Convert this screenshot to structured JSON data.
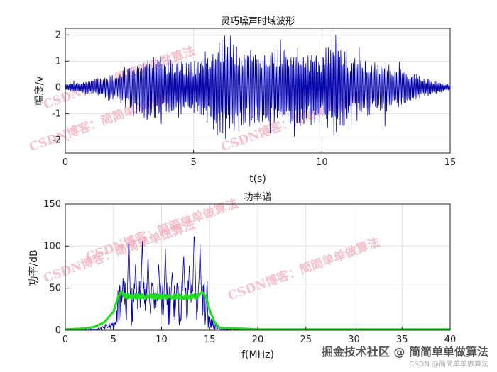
{
  "chart_data": [
    {
      "type": "line",
      "title": "灵巧噪声时域波形",
      "xlabel": "t(s)",
      "ylabel": "幅度/v",
      "xlim": [
        0,
        15
      ],
      "ylim": [
        -2.5,
        2.25
      ],
      "xticks": [
        0,
        5,
        10,
        15
      ],
      "yticks": [
        -2,
        -1,
        0,
        1,
        2
      ],
      "grid": true,
      "series": [
        {
          "color": "#0000aa",
          "description": "dense noise waveform",
          "envelope_t": [
            0,
            1,
            2,
            3,
            4,
            5,
            5.5,
            6,
            6.3,
            7,
            8,
            9,
            10,
            10.5,
            11,
            12,
            13,
            14,
            15
          ],
          "envelope_amp": [
            0.15,
            0.3,
            0.6,
            1.2,
            1.3,
            1.0,
            1.6,
            1.9,
            2.2,
            1.5,
            1.5,
            1.6,
            1.4,
            2.4,
            1.4,
            1.1,
            0.8,
            0.4,
            0.1
          ]
        }
      ]
    },
    {
      "type": "line",
      "title": "功率谱",
      "xlabel": "f(MHz)",
      "ylabel": "功率/dB",
      "xlim": [
        0,
        40
      ],
      "ylim": [
        0,
        150
      ],
      "xticks": [
        0,
        5,
        10,
        15,
        20,
        25,
        30,
        35,
        40
      ],
      "yticks": [
        0,
        50,
        100,
        150
      ],
      "grid": true,
      "series": [
        {
          "color": "#0000aa",
          "description": "raw spectrum",
          "peaks_f": [
            6.0,
            6.6,
            7.3,
            8.0,
            8.6,
            9.1,
            9.7,
            10.4,
            11.1,
            11.6,
            12.3,
            12.9,
            13.4,
            14.0
          ],
          "peaks_v": [
            62,
            112,
            82,
            106,
            92,
            60,
            82,
            96,
            72,
            56,
            92,
            80,
            122,
            102
          ]
        },
        {
          "color": "#22dd22",
          "description": "smoothed spectrum",
          "x": [
            0,
            2,
            3,
            4,
            5,
            5.5,
            5.8,
            6.2,
            8,
            10,
            12,
            13.8,
            14.2,
            14.6,
            15,
            15.5,
            16,
            20,
            40
          ],
          "y": [
            1,
            2,
            4,
            9,
            22,
            40,
            46,
            40,
            40,
            40,
            40,
            40,
            46,
            40,
            24,
            10,
            3,
            1,
            1
          ]
        }
      ]
    }
  ],
  "watermarks": [
    "CSDN博客：简简单单做算法",
    "CSDN博客：简简单单做算法",
    "CSDN博客：简简单单做算法",
    "CSDN博客：简简单单做算法",
    "CSDN博客：简简单单做算法",
    "CSDN博客：简简单单做算法"
  ],
  "footer": {
    "main": "掘金技术社区 @ 简简单单做算法",
    "sub": "CSDN @简简单单做算法"
  }
}
